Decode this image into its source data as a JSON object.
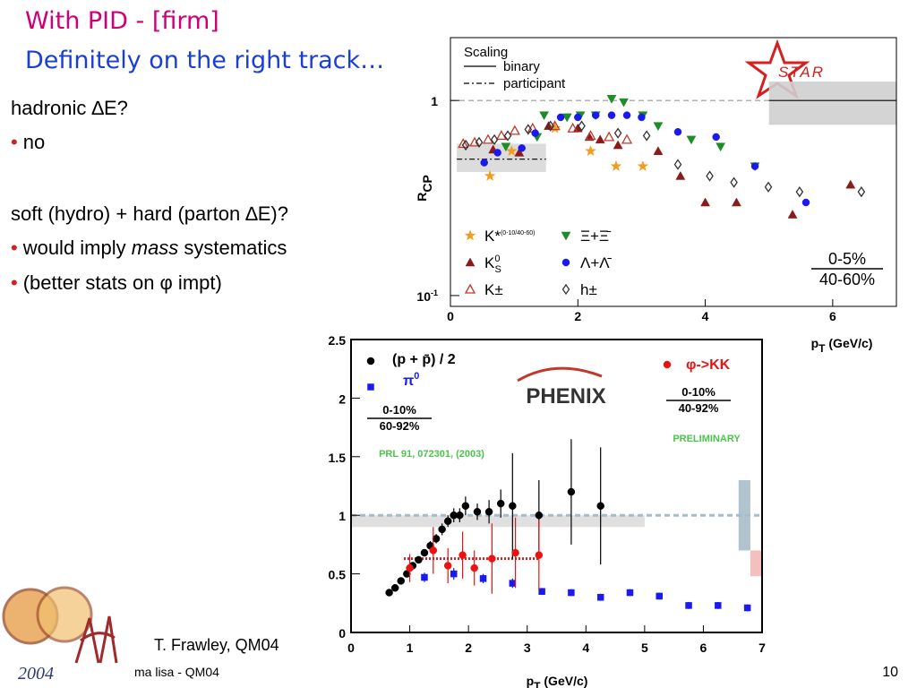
{
  "slide": {
    "title": [
      "With PID - [firm]",
      "Definitely on the right track…"
    ],
    "body": [
      {
        "text": "hadronic ∆E?"
      },
      {
        "bullet": "•",
        "parts": [
          "no"
        ]
      },
      {
        "text": "soft (hydro) + hard (parton ∆E)?"
      },
      {
        "bullet": "•",
        "parts": [
          "would imply ",
          "mass",
          " systematics"
        ]
      },
      {
        "bullet": "•",
        "parts": [
          "(better stats on φ impt)"
        ]
      }
    ],
    "credit": "T. Frawley, QM04",
    "footer": "ma lisa - QM04",
    "page": "10",
    "logo_year": "2004"
  },
  "chart_data": [
    {
      "type": "scatter",
      "logo": "STAR",
      "ylabel": "R",
      "ylabel_sub": "CP",
      "xlabel": "p",
      "xlabel_sub": "T",
      "xlabel_unit": " (GeV/c)",
      "legend_title": "Scaling",
      "xlim": [
        0,
        7
      ],
      "xticks": [
        0,
        2,
        4,
        6
      ],
      "ylim": [
        0.088,
        2.1
      ],
      "log_y": true,
      "yticks": [
        {
          "value": 0.1,
          "label": "10",
          "sup": "-1"
        },
        1
      ],
      "bands": [
        {
          "x": [
            5,
            7
          ],
          "y": [
            0.75,
            1.25
          ],
          "color": "#cfcfcf"
        },
        {
          "x": [
            0.1,
            1.5
          ],
          "y": [
            0.43,
            0.6
          ],
          "color": "#d8d8d8"
        }
      ],
      "ref_lines": [
        {
          "x": [
            0,
            5
          ],
          "y": 1,
          "color": "#999999",
          "style": "dashed"
        },
        {
          "name": "binary",
          "x": [
            5,
            7
          ],
          "y": 1,
          "color": "#000000",
          "style": "solid"
        },
        {
          "name": "participant",
          "x": [
            0.1,
            1.5
          ],
          "y": 0.5,
          "color": "#000000",
          "style": "dashdot"
        }
      ],
      "fractions": [
        {
          "num": "0-5%",
          "den": "40-60%"
        }
      ],
      "series": [
        {
          "name": "K*",
          "sup": "(0-10/40-60)",
          "color": "#f39c1f",
          "marker": "star",
          "x": [
            0.62,
            0.96,
            1.64,
            2.2,
            2.6,
            3.02
          ],
          "values": [
            0.41,
            0.55,
            0.72,
            0.55,
            0.46,
            0.46
          ]
        },
        {
          "name": "K",
          "sup": "0",
          "sub": "S",
          "color": "#8b1a1a",
          "marker": "triangle",
          "x": [
            0.67,
            1.08,
            1.54,
            2.0,
            2.18,
            2.35,
            2.63,
            3.26,
            3.61,
            4.0,
            4.49,
            5.37,
            6.28
          ],
          "values": [
            0.56,
            0.54,
            0.74,
            0.72,
            0.65,
            0.63,
            0.59,
            0.55,
            0.41,
            0.3,
            0.3,
            0.26,
            0.37
          ]
        },
        {
          "name": "K±",
          "color": "#c0392b",
          "marker": "triangle-open",
          "x": [
            0.2,
            0.38,
            0.59,
            0.8,
            1.01,
            1.29,
            1.64,
            1.92,
            2.2,
            2.49,
            2.77
          ],
          "values": [
            0.6,
            0.61,
            0.63,
            0.66,
            0.7,
            0.72,
            0.74,
            0.72,
            0.66,
            0.65,
            0.63
          ]
        },
        {
          "name": "Ξ+Ξ̄",
          "color": "#1e8c28",
          "marker": "triangle-down",
          "x": [
            0.87,
            1.36,
            1.47,
            1.83,
            2.04,
            2.28,
            2.53,
            2.72,
            3.02,
            3.26,
            3.78,
            4.24,
            4.78
          ],
          "values": [
            0.58,
            0.65,
            0.84,
            0.82,
            0.84,
            0.84,
            1.02,
            0.98,
            0.84,
            0.74,
            0.63,
            0.58,
            0.46
          ]
        },
        {
          "name": "Λ+Λ̄",
          "color": "#1a1aee",
          "marker": "circle",
          "x": [
            0.53,
            0.74,
            1.12,
            1.33,
            1.73,
            2.0,
            2.28,
            2.53,
            2.77,
            3.0,
            3.57,
            4.17,
            4.78,
            5.58
          ],
          "values": [
            0.48,
            0.54,
            0.57,
            0.68,
            0.82,
            0.82,
            0.84,
            0.84,
            0.84,
            0.82,
            0.69,
            0.65,
            0.46,
            0.3
          ]
        },
        {
          "name": "h±",
          "color": "#333333",
          "marker": "diamond-open",
          "x": [
            0.24,
            0.45,
            0.69,
            0.9,
            1.22,
            1.57,
            2.06,
            2.63,
            3.08,
            3.57,
            4.07,
            4.45,
            4.99,
            5.48,
            6.45
          ],
          "values": [
            0.59,
            0.61,
            0.63,
            0.66,
            0.71,
            0.74,
            0.74,
            0.68,
            0.66,
            0.47,
            0.41,
            0.38,
            0.36,
            0.34,
            0.34
          ]
        }
      ]
    },
    {
      "type": "scatter",
      "logo": "PHENIX",
      "xlabel": "p",
      "xlabel_sub": "T",
      "xlabel_unit": " (GeV/c)",
      "note": "PRL 91, 072301, (2003)",
      "status": "PRELIMINARY",
      "xlim": [
        0,
        7
      ],
      "xticks": [
        0,
        1,
        2,
        3,
        4,
        5,
        6,
        7
      ],
      "ylim": [
        0,
        2.5
      ],
      "yticks": [
        0,
        0.5,
        1,
        1.5,
        2,
        2.5
      ],
      "bands": [
        {
          "x": [
            0,
            5
          ],
          "y": [
            0.9,
            1.0
          ],
          "color": "#dddddd"
        },
        {
          "x": [
            6.6,
            6.8
          ],
          "y": [
            0.7,
            1.3
          ],
          "color": "#a9bcc6"
        },
        {
          "x": [
            6.8,
            7
          ],
          "y": [
            0.48,
            0.7
          ],
          "color": "#f2b8b8"
        }
      ],
      "ref_lines": [
        {
          "x": [
            0,
            7
          ],
          "y": 1,
          "color": "#a6bccb",
          "style": "dashed"
        },
        {
          "x": [
            0.9,
            3.2
          ],
          "y": 0.63,
          "color": "#cc2222",
          "style": "dotted"
        }
      ],
      "fractions": [
        {
          "num": "0-10%",
          "den": "60-92%"
        },
        {
          "num": "0-10%",
          "den": "40-92%"
        }
      ],
      "series": [
        {
          "name": "(p + p̄) / 2",
          "color": "#000000",
          "marker": "circle",
          "x": [
            0.65,
            0.75,
            0.85,
            0.95,
            1.05,
            1.15,
            1.25,
            1.35,
            1.45,
            1.55,
            1.65,
            1.75,
            1.85,
            1.95,
            2.15,
            2.35,
            2.55,
            2.75,
            3.2,
            3.75,
            4.25
          ],
          "values": [
            0.34,
            0.38,
            0.44,
            0.5,
            0.57,
            0.62,
            0.68,
            0.74,
            0.8,
            0.88,
            0.95,
            1.0,
            1.0,
            1.08,
            1.03,
            1.03,
            1.1,
            1.08,
            1.0,
            1.2,
            1.08
          ],
          "errors": [
            0.01,
            0.01,
            0.02,
            0.02,
            0.02,
            0.03,
            0.03,
            0.04,
            0.04,
            0.05,
            0.05,
            0.06,
            0.06,
            0.08,
            0.07,
            0.1,
            0.12,
            0.45,
            0.3,
            0.45,
            0.5
          ]
        },
        {
          "name": "π",
          "sup": "0",
          "color": "#1a1aee",
          "marker": "square",
          "x": [
            1.25,
            1.75,
            2.25,
            2.75,
            3.25,
            3.75,
            4.25,
            4.75,
            5.25,
            5.75,
            6.25,
            6.75
          ],
          "values": [
            0.47,
            0.5,
            0.46,
            0.42,
            0.35,
            0.34,
            0.3,
            0.34,
            0.31,
            0.23,
            0.23,
            0.21
          ],
          "errors": [
            0.04,
            0.05,
            0.04,
            0.04,
            0.03,
            0.03,
            0.03,
            0.03,
            0.03,
            0.03,
            0.03,
            0.03
          ]
        },
        {
          "name": "φ->KK",
          "color": "#ee1111",
          "marker": "circle",
          "x": [
            1.0,
            1.4,
            1.65,
            1.9,
            2.1,
            2.4,
            2.8,
            3.2
          ],
          "values": [
            0.55,
            0.7,
            0.57,
            0.66,
            0.55,
            0.63,
            0.68,
            0.66
          ],
          "errors": [
            0.12,
            0.2,
            0.15,
            0.2,
            0.15,
            0.3,
            0.3,
            0.3
          ]
        }
      ]
    }
  ]
}
